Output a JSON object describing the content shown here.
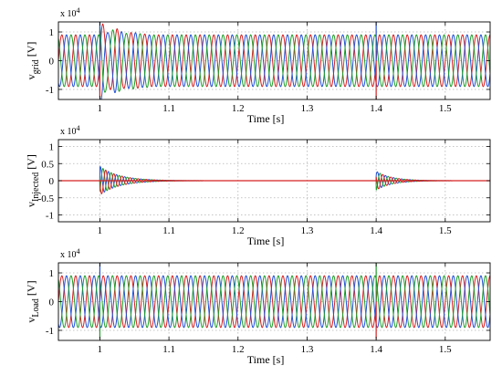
{
  "figure": {
    "background": "#ffffff",
    "grid_color": "#b4b4b4"
  },
  "chart_data": [
    {
      "type": "line",
      "ylabel_main": "v",
      "ylabel_sub": "grid",
      "ylabel_unit": "[V]",
      "xlabel": "Time [s]",
      "exponent_label": "x 10",
      "exponent_power": "4",
      "xlim": [
        0.94,
        1.565
      ],
      "ylim": [
        -1.35,
        1.35
      ],
      "xticks": [
        1,
        1.1,
        1.2,
        1.3,
        1.4,
        1.5
      ],
      "xtick_labels": [
        "1",
        "1.1",
        "1.2",
        "1.3",
        "1.4",
        "1.5"
      ],
      "yticks": [
        -1,
        0,
        1
      ],
      "ytick_labels": [
        "-1",
        "0",
        "1"
      ],
      "grid": true,
      "colors": [
        "#d62020",
        "#1f4fd6",
        "#1e9e2a"
      ],
      "steady_amplitude": 0.9,
      "frequency_hz": 50,
      "events": [
        {
          "time": 1.0,
          "description": "transient oscillation of grid voltage"
        },
        {
          "time": 1.4,
          "description": "voltage spikes at second event"
        }
      ]
    },
    {
      "type": "line",
      "ylabel_main": "v",
      "ylabel_sub": "Injected",
      "ylabel_unit": "[V]",
      "xlabel": "Time [s]",
      "exponent_label": "x 10",
      "exponent_power": "4",
      "xlim": [
        0.94,
        1.565
      ],
      "ylim": [
        -1.2,
        1.2
      ],
      "xticks": [
        1,
        1.1,
        1.2,
        1.3,
        1.4,
        1.5
      ],
      "xtick_labels": [
        "1",
        "1.1",
        "1.2",
        "1.3",
        "1.4",
        "1.5"
      ],
      "yticks": [
        -1,
        -0.5,
        0,
        0.5,
        1
      ],
      "ytick_labels": [
        "-1",
        "-0.5",
        "0",
        "0.5",
        "1"
      ],
      "grid": true,
      "colors": [
        "#d62020",
        "#1f4fd6",
        "#1e9e2a"
      ],
      "events": [
        {
          "time": 1.0,
          "peak": 0.42,
          "decay_end": 1.15
        },
        {
          "time": 1.4,
          "peak": 0.28,
          "decay_end": 1.51
        }
      ]
    },
    {
      "type": "line",
      "ylabel_main": "v",
      "ylabel_sub": "Load",
      "ylabel_unit": "[V]",
      "xlabel": "Time [s]",
      "exponent_label": "x 10",
      "exponent_power": "4",
      "xlim": [
        0.94,
        1.565
      ],
      "ylim": [
        -1.35,
        1.35
      ],
      "xticks": [
        1,
        1.1,
        1.2,
        1.3,
        1.4,
        1.5
      ],
      "xtick_labels": [
        "1",
        "1.1",
        "1.2",
        "1.3",
        "1.4",
        "1.5"
      ],
      "yticks": [
        -1,
        0,
        1
      ],
      "ytick_labels": [
        "-1",
        "0",
        "1"
      ],
      "grid": true,
      "colors": [
        "#d62020",
        "#1f4fd6",
        "#1e9e2a"
      ],
      "steady_amplitude": 0.9,
      "frequency_hz": 50,
      "events": [
        {
          "time": 1.0,
          "description": "small spikes only"
        },
        {
          "time": 1.4,
          "description": "small spikes only"
        }
      ]
    }
  ]
}
